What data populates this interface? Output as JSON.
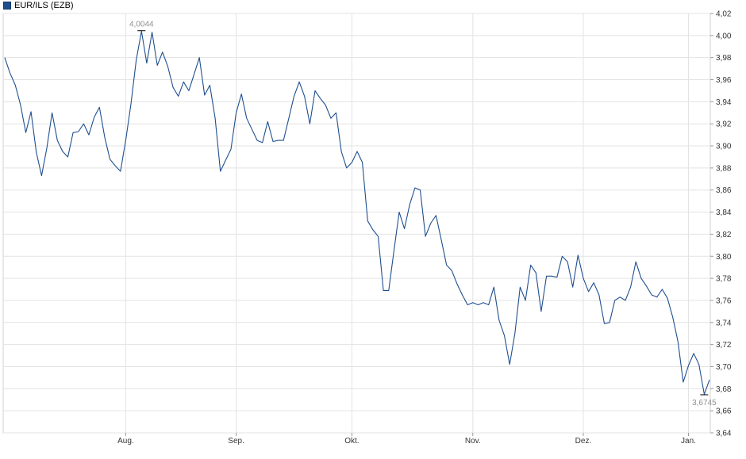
{
  "legend": {
    "label": "EUR/ILS (EZB)",
    "color": "#1f4f8f"
  },
  "chart_data": {
    "type": "line",
    "title": "",
    "series": [
      {
        "name": "EUR/ILS (EZB)",
        "color": "#1f4f8f",
        "values": [
          3.98,
          3.966,
          3.955,
          3.937,
          3.912,
          3.931,
          3.894,
          3.873,
          3.898,
          3.93,
          3.905,
          3.895,
          3.89,
          3.912,
          3.913,
          3.92,
          3.91,
          3.926,
          3.935,
          3.908,
          3.888,
          3.882,
          3.877,
          3.905,
          3.938,
          3.978,
          4.004,
          3.975,
          4.003,
          3.973,
          3.985,
          3.972,
          3.953,
          3.945,
          3.958,
          3.95,
          3.965,
          3.98,
          3.946,
          3.955,
          3.925,
          3.877,
          3.887,
          3.897,
          3.93,
          3.947,
          3.925,
          3.915,
          3.905,
          3.903,
          3.922,
          3.904,
          3.905,
          3.905,
          3.925,
          3.945,
          3.958,
          3.945,
          3.92,
          3.95,
          3.943,
          3.937,
          3.925,
          3.93,
          3.895,
          3.88,
          3.885,
          3.895,
          3.885,
          3.832,
          3.824,
          3.818,
          3.769,
          3.769,
          3.805,
          3.84,
          3.825,
          3.847,
          3.862,
          3.86,
          3.818,
          3.83,
          3.837,
          3.815,
          3.792,
          3.787,
          3.775,
          3.765,
          3.756,
          3.758,
          3.756,
          3.758,
          3.756,
          3.772,
          3.742,
          3.728,
          3.702,
          3.73,
          3.772,
          3.76,
          3.792,
          3.785,
          3.75,
          3.782,
          3.782,
          3.781,
          3.8,
          3.795,
          3.772,
          3.801,
          3.78,
          3.768,
          3.776,
          3.765,
          3.739,
          3.74,
          3.76,
          3.763,
          3.76,
          3.772,
          3.795,
          3.78,
          3.773,
          3.765,
          3.763,
          3.77,
          3.762,
          3.745,
          3.723,
          3.686,
          3.701,
          3.712,
          3.702,
          3.675,
          3.688
        ]
      }
    ],
    "x_labels": [
      "Aug.",
      "Sep.",
      "Okt.",
      "Nov.",
      "Dez.",
      "Jan."
    ],
    "x_label_indices": [
      23,
      44,
      66,
      89,
      110,
      130
    ],
    "y_ticks": [
      "3,64",
      "3,66",
      "3,68",
      "3,70",
      "3,72",
      "3,74",
      "3,76",
      "3,78",
      "3,80",
      "3,82",
      "3,84",
      "3,86",
      "3,88",
      "3,90",
      "3,92",
      "3,94",
      "3,96",
      "3,98",
      "4,00",
      "4,02"
    ],
    "ylim": [
      3.64,
      4.02
    ],
    "y_axis_side": "right",
    "grid": true,
    "annotations": [
      {
        "label": "4,0044",
        "index": 26,
        "value": 4.0044,
        "type": "max"
      },
      {
        "label": "3,6745",
        "index": 133,
        "value": 3.6745,
        "type": "min"
      }
    ]
  }
}
